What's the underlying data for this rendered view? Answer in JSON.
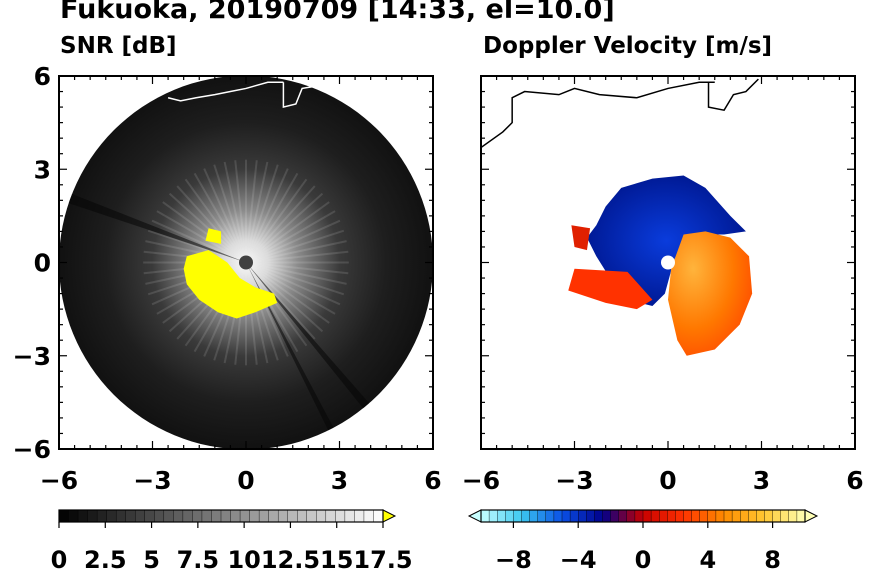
{
  "title": "Fukuoka, 20190709 [14:33, el=10.0]",
  "chart_data": [
    {
      "type": "heatmap",
      "subtitle": "SNR [dB]",
      "x_ticks": [
        -6,
        -3,
        0,
        3,
        6
      ],
      "y_ticks": [
        -6,
        -3,
        0,
        3,
        6
      ],
      "xlim": [
        -6,
        6
      ],
      "ylim": [
        -6,
        6
      ],
      "colorbar": {
        "range": [
          0,
          17.5
        ],
        "tick_values": [
          0,
          2.5,
          5,
          7.5,
          10,
          12.5,
          15,
          17.5
        ],
        "tick_labels": [
          "0",
          "2.5",
          "5",
          "7.5",
          "10",
          "12.5",
          "15",
          "17.5"
        ],
        "colors": [
          "#000000",
          "#ffffff"
        ],
        "over_color": "#ffff00",
        "extend": "max"
      },
      "radar_range": 6,
      "saturated_region_color": "#ffff00",
      "coastline_color": "#ffffff"
    },
    {
      "type": "heatmap",
      "subtitle": "Doppler Velocity [m/s]",
      "x_ticks": [
        -6,
        -3,
        0,
        3,
        6
      ],
      "y_ticks": [
        -6,
        -3,
        0,
        3,
        6
      ],
      "xlim": [
        -6,
        6
      ],
      "ylim": [
        -6,
        6
      ],
      "colorbar": {
        "range": [
          -10,
          10
        ],
        "tick_values": [
          -8,
          -4,
          0,
          4,
          8
        ],
        "tick_labels": [
          "−8",
          "−4",
          "0",
          "4",
          "8"
        ],
        "colors": [
          "#c8ffff",
          "#3cc8f0",
          "#0a50e6",
          "#00008c",
          "#c80000",
          "#ff3200",
          "#ff8c00",
          "#ffc832",
          "#ffffb4"
        ],
        "extend": "both"
      },
      "approaching_color": "#0028d2",
      "receding_color": "#ff7800",
      "coastline_color": "#000000"
    }
  ]
}
